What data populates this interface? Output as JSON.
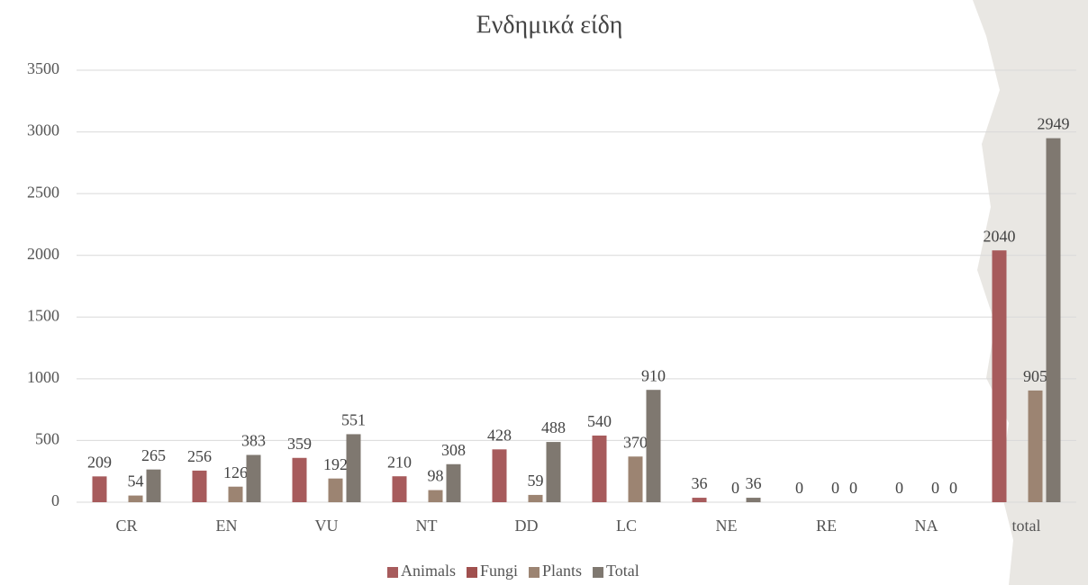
{
  "chart_data": {
    "type": "bar",
    "title": "Ενδημικά είδη",
    "categories": [
      "CR",
      "EN",
      "VU",
      "NT",
      "DD",
      "LC",
      "NE",
      "RE",
      "NA",
      "total"
    ],
    "series": [
      {
        "name": "Animals",
        "color": "#a75b5c",
        "values": [
          209,
          256,
          359,
          210,
          428,
          540,
          36,
          0,
          0,
          2040
        ]
      },
      {
        "name": "Fungi",
        "color": "#a0504e",
        "values": [
          null,
          null,
          null,
          null,
          null,
          null,
          null,
          null,
          null,
          null
        ]
      },
      {
        "name": "Plants",
        "color": "#9c8472",
        "values": [
          54,
          126,
          192,
          98,
          59,
          370,
          0,
          0,
          0,
          905
        ]
      },
      {
        "name": "Total",
        "color": "#7f7870",
        "values": [
          265,
          383,
          551,
          308,
          488,
          910,
          36,
          0,
          0,
          2949
        ]
      }
    ],
    "ylim": [
      0,
      3500
    ],
    "yticks": [
      0,
      500,
      1000,
      1500,
      2000,
      2500,
      3000,
      3500
    ],
    "grid": true,
    "legend": "bottom"
  }
}
